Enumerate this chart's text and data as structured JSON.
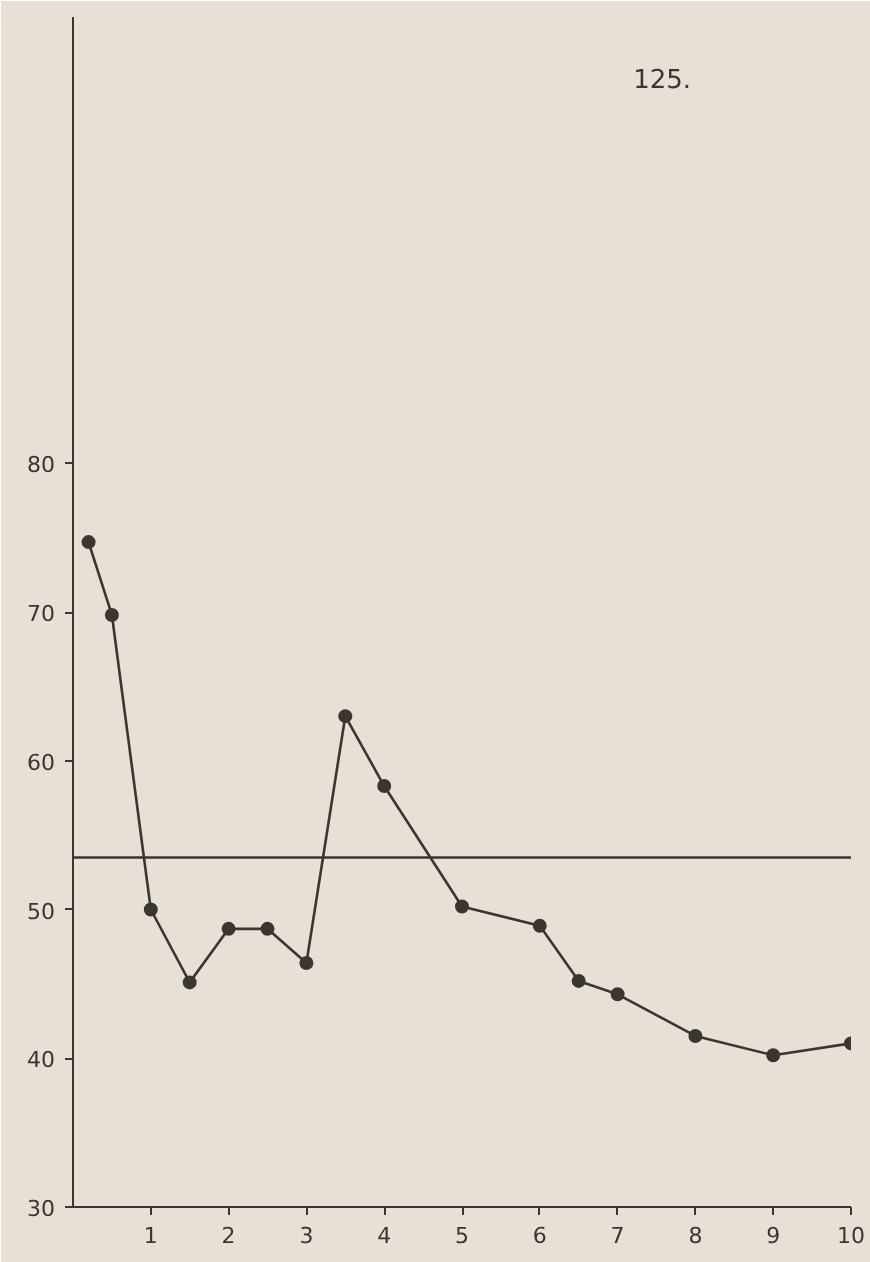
{
  "chart_data": {
    "type": "line",
    "annotations": [
      "125."
    ],
    "x": [
      0.2,
      0.5,
      1,
      1.5,
      2,
      2.5,
      3,
      3.5,
      4,
      5,
      6,
      6.5,
      7,
      8,
      9,
      10
    ],
    "series": [
      {
        "color": "#3a3632",
        "values": [
          74.7,
          69.8,
          50,
          45.1,
          48.7,
          48.7,
          46.4,
          63,
          58.3,
          50.2,
          48.9,
          45.2,
          44.3,
          41.5,
          40.2,
          41.0
        ]
      }
    ],
    "xlim": [
      0,
      10
    ],
    "ylim": [
      30,
      110
    ],
    "xticks": [
      1,
      2,
      3,
      4,
      5,
      6,
      7,
      8,
      9,
      10
    ],
    "yticks": [
      30,
      40,
      50,
      60,
      70,
      80
    ],
    "ref_lines": [
      {
        "axis": "y",
        "value": 53.5,
        "color": "#3a3632"
      }
    ],
    "marker": "circle",
    "line_style": "solid",
    "grid": false
  }
}
